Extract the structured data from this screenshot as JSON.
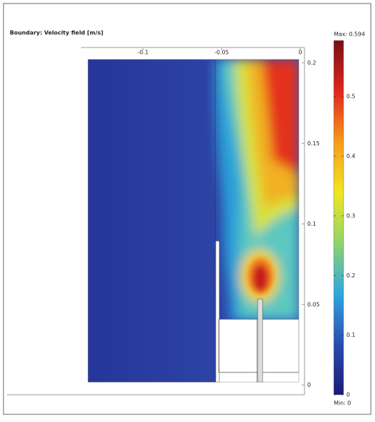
{
  "chart_data": {
    "type": "field",
    "title": "Boundary: Velocity field [m/s]",
    "xlim": [
      -0.135,
      0
    ],
    "xticks": [
      -0.1,
      -0.05,
      0
    ],
    "ylim": [
      0,
      0.2
    ],
    "yticks": [
      0,
      0.05,
      0.1,
      0.15,
      0.2
    ],
    "colorbar": {
      "lim": [
        0,
        0.594
      ],
      "ticks": [
        0,
        0.1,
        0.2,
        0.3,
        0.4,
        0.5
      ],
      "max_label": "Max: 0.594",
      "min_label": "Min: 0",
      "colors": [
        "#1a1a7a",
        "#2a4cb0",
        "#2fa8e0",
        "#8fd46a",
        "#f2e620",
        "#f79a1c",
        "#e0261c",
        "#7a0f14"
      ]
    }
  }
}
